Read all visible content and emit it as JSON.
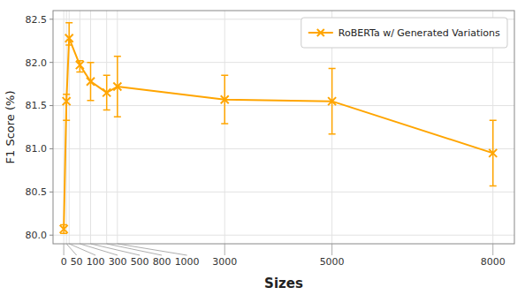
{
  "chart_data": {
    "type": "line",
    "x": [
      0,
      50,
      100,
      300,
      500,
      800,
      1000,
      3000,
      5000,
      8000
    ],
    "xlabel": "Sizes",
    "ylabel": "F1 Score (%)",
    "xlim": [
      -200,
      8400
    ],
    "xticks": [
      0,
      50,
      100,
      300,
      500,
      800,
      1000,
      3000,
      5000,
      8000
    ],
    "ylim": [
      79.9,
      82.6
    ],
    "yticks": [
      {
        "value": 80,
        "label": "80.0"
      },
      80.5,
      {
        "value": 81,
        "label": "81.0"
      },
      81.5,
      {
        "value": 82,
        "label": "82.0"
      },
      82.5
    ],
    "grid": true,
    "legend": "upper right",
    "series": [
      {
        "name": "RoBERTa w/ Generated Variations",
        "color": "#FFA500",
        "marker": "x",
        "line_style": "solid",
        "values": [
          80.07,
          81.55,
          82.28,
          81.97,
          81.78,
          81.65,
          81.72,
          81.57,
          81.55,
          80.95
        ],
        "errors_lower": [
          0.05,
          0.22,
          0.08,
          0.08,
          0.22,
          0.2,
          0.35,
          0.28,
          0.38,
          0.38
        ],
        "errors_upper": [
          0.05,
          0.08,
          0.18,
          0.05,
          0.22,
          0.2,
          0.35,
          0.28,
          0.38,
          0.38
        ]
      }
    ]
  }
}
